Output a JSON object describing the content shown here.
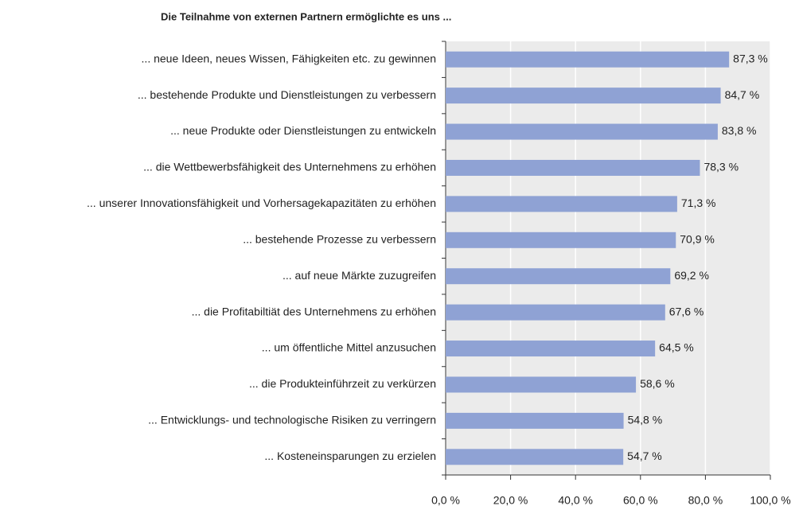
{
  "chart_data": {
    "type": "bar",
    "orientation": "horizontal",
    "title": "Die Teilnahme von externen Partnern ermöglichte es uns ...",
    "categories": [
      "... neue Ideen, neues Wissen, Fähigkeiten etc. zu gewinnen",
      "... bestehende Produkte und Dienstleistungen zu verbessern",
      "... neue Produkte oder Dienstleistungen zu entwickeln",
      "... die Wettbewerbsfähigkeit des Unternehmens zu erhöhen",
      "... unserer Innovationsfähigkeit und Vorhersagekapazitäten zu erhöhen",
      "... bestehende Prozesse zu verbessern",
      "... auf neue Märkte zuzugreifen",
      "... die Profitabiltiät des Unternehmens zu erhöhen",
      "... um öffentliche Mittel anzusuchen",
      "... die Produkteinführzeit zu verkürzen",
      "... Entwicklungs- und technologische Risiken zu verringern",
      "... Kosteneinsparungen zu erzielen"
    ],
    "values": [
      87.3,
      84.7,
      83.8,
      78.3,
      71.3,
      70.9,
      69.2,
      67.6,
      64.5,
      58.6,
      54.8,
      54.7
    ],
    "value_labels": [
      "87,3 %",
      "84,7 %",
      "83,8 %",
      "78,3 %",
      "71,3 %",
      "70,9 %",
      "69,2 %",
      "67,6 %",
      "64,5 %",
      "58,6 %",
      "54,8 %",
      "54,7 %"
    ],
    "color": "#8fa2d4",
    "xlim": [
      0,
      100
    ],
    "xticks": [
      {
        "value": 0,
        "label": "0,0 %"
      },
      {
        "value": 20,
        "label": "20,0 %"
      },
      {
        "value": 40,
        "label": "40,0 %"
      },
      {
        "value": 60,
        "label": "60,0 %"
      },
      {
        "value": 80,
        "label": "80,0 %"
      },
      {
        "value": 100,
        "label": "100,0 %"
      }
    ],
    "grid": true
  }
}
